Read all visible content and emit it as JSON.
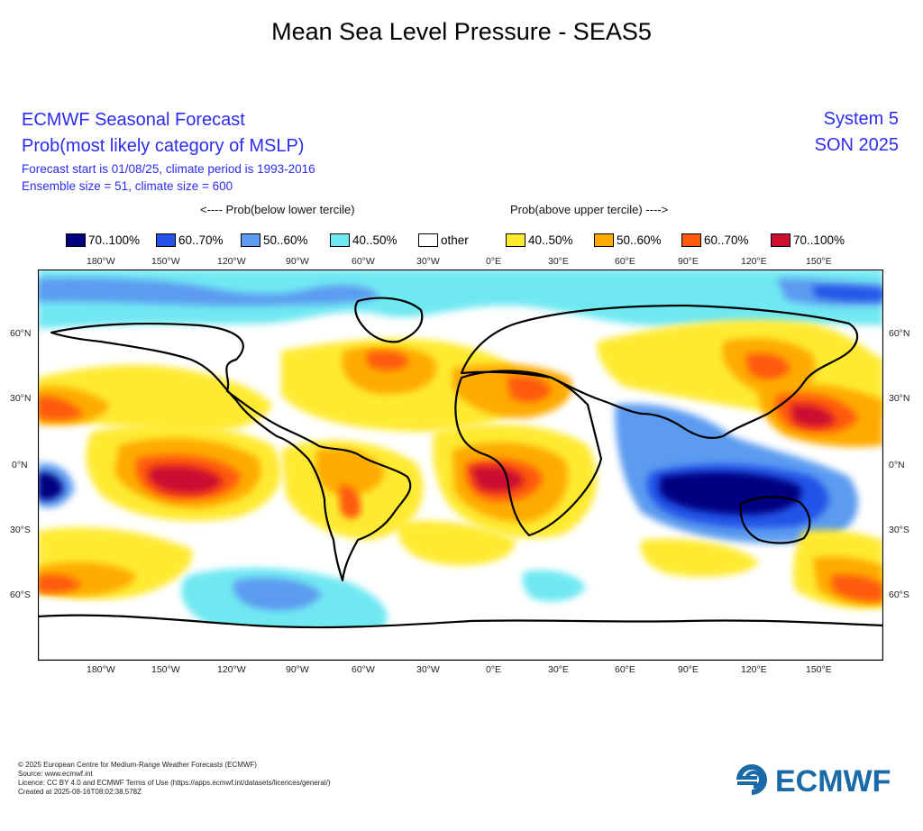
{
  "title": "Mean Sea Level Pressure - SEAS5",
  "header": {
    "line1": "ECMWF Seasonal Forecast",
    "line2": "Prob(most likely category of MSLP)",
    "line3": "Forecast start is 01/08/25, climate period is 1993-2016",
    "line4": "Ensemble size = 51, climate size = 600",
    "system": "System 5",
    "season": "SON 2025"
  },
  "legend": {
    "below_heading": "<---- Prob(below lower tercile)",
    "above_heading": "Prob(above upper tercile) ---->",
    "items": [
      {
        "label": "70..100%",
        "color": "#000080"
      },
      {
        "label": "60..70%",
        "color": "#2452e8"
      },
      {
        "label": "50..60%",
        "color": "#5b9bf0"
      },
      {
        "label": "40..50%",
        "color": "#6fe8f2"
      },
      {
        "label": "other",
        "color": "#ffffff"
      },
      {
        "label": "40..50%",
        "color": "#ffea30"
      },
      {
        "label": "50..60%",
        "color": "#ffaa00"
      },
      {
        "label": "60..70%",
        "color": "#ff5a0a"
      },
      {
        "label": "70..100%",
        "color": "#cc1030"
      }
    ]
  },
  "map": {
    "lon_ticks": [
      "180°W",
      "150°W",
      "120°W",
      "90°W",
      "60°W",
      "30°W",
      "0°E",
      "30°E",
      "60°E",
      "90°E",
      "120°E",
      "150°E"
    ],
    "lat_ticks": [
      "60°N",
      "30°N",
      "0°N",
      "30°S",
      "60°S"
    ]
  },
  "footer": {
    "line1": "© 2025 European Centre for Medium-Range Weather Forecasts (ECMWF)",
    "line2": "Source: www.ecmwf.int",
    "line3": "Licence: CC BY 4.0 and ECMWF Terms of Use (https://apps.ecmwf.int/datasets/licences/general/)",
    "line4": "Created at 2025-08-16T08:02:38.578Z"
  },
  "logo": {
    "text": "ECMWF",
    "color": "#1a6aa8"
  }
}
